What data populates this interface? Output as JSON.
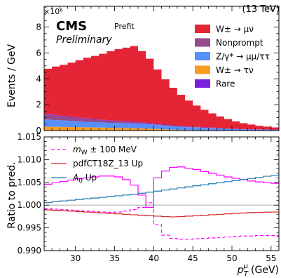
{
  "chart_data": [
    {
      "type": "area",
      "stacked": true,
      "energy": "(13 TeV)",
      "experiment": "CMS",
      "status": "Preliminary",
      "stage": "Prefit",
      "ylabel": "Events / GeV",
      "y_exponent": "×10⁶",
      "xlim": [
        26,
        56
      ],
      "ylim": [
        0,
        9.6
      ],
      "yticks": [
        {
          "v": 0,
          "label": "0"
        },
        {
          "v": 2,
          "label": "2"
        },
        {
          "v": 4,
          "label": "4"
        },
        {
          "v": 6,
          "label": "6"
        },
        {
          "v": 8,
          "label": "8"
        }
      ],
      "bin_edges": [
        26,
        27,
        28,
        29,
        30,
        31,
        32,
        33,
        34,
        35,
        36,
        37,
        38,
        39,
        40,
        41,
        42,
        43,
        44,
        45,
        46,
        47,
        48,
        49,
        50,
        51,
        52,
        53,
        54,
        55,
        56
      ],
      "series": [
        {
          "name": "W± → τν",
          "color": "#f89c20",
          "values": [
            0.3,
            0.29,
            0.28,
            0.27,
            0.26,
            0.25,
            0.24,
            0.23,
            0.22,
            0.21,
            0.2,
            0.19,
            0.17,
            0.15,
            0.12,
            0.09,
            0.07,
            0.05,
            0.04,
            0.03,
            0.02,
            0.02,
            0.015,
            0.01,
            0.01,
            0.01,
            0.005,
            0.005,
            0.005,
            0.005
          ]
        },
        {
          "name": "Z/γ* → μμ/ττ",
          "color": "#5790fc",
          "values": [
            0.55,
            0.52,
            0.5,
            0.47,
            0.45,
            0.43,
            0.41,
            0.4,
            0.38,
            0.37,
            0.36,
            0.35,
            0.34,
            0.33,
            0.3,
            0.28,
            0.26,
            0.24,
            0.22,
            0.2,
            0.18,
            0.16,
            0.14,
            0.12,
            0.1,
            0.08,
            0.07,
            0.06,
            0.05,
            0.04
          ]
        },
        {
          "name": "Nonprompt",
          "color": "#964a8b",
          "values": [
            0.38,
            0.34,
            0.3,
            0.26,
            0.23,
            0.2,
            0.17,
            0.15,
            0.13,
            0.11,
            0.1,
            0.09,
            0.08,
            0.07,
            0.06,
            0.05,
            0.04,
            0.035,
            0.03,
            0.025,
            0.02,
            0.02,
            0.015,
            0.015,
            0.01,
            0.01,
            0.01,
            0.01,
            0.01,
            0.01
          ]
        },
        {
          "name": "Rare",
          "color": "#7a21dd",
          "values": [
            0.05,
            0.05,
            0.05,
            0.05,
            0.05,
            0.05,
            0.05,
            0.05,
            0.05,
            0.05,
            0.05,
            0.05,
            0.05,
            0.05,
            0.04,
            0.04,
            0.04,
            0.04,
            0.03,
            0.03,
            0.03,
            0.03,
            0.02,
            0.02,
            0.02,
            0.02,
            0.02,
            0.02,
            0.02,
            0.02
          ]
        },
        {
          "name": "W± → μν",
          "color": "#e42536",
          "values": [
            3.5,
            3.75,
            3.95,
            4.2,
            4.45,
            4.7,
            4.9,
            5.1,
            5.35,
            5.55,
            5.7,
            5.85,
            5.5,
            4.95,
            4.2,
            3.5,
            2.9,
            2.4,
            2.0,
            1.65,
            1.35,
            1.1,
            0.9,
            0.72,
            0.57,
            0.45,
            0.36,
            0.28,
            0.22,
            0.17
          ]
        }
      ],
      "legend_order": [
        "W± → μν",
        "Nonprompt",
        "Z/γ* → μμ/ττ",
        "W± → τν",
        "Rare"
      ],
      "legend_labels": {
        "W± → μν": "W± → μν",
        "Nonprompt": "Nonprompt",
        "Z/γ* → μμ/ττ": "Z/γ* → μμ/ττ",
        "W± → τν": "W± → τν",
        "Rare": "Rare"
      },
      "legend_position": "top-right"
    },
    {
      "type": "line",
      "ylabel": "Ratio to pred.",
      "xlabel_main": "p",
      "xlabel_sup": "μ",
      "xlabel_sub": "T",
      "xlabel_unit": "(GeV)",
      "xlim": [
        26,
        56
      ],
      "ylim": [
        0.99,
        1.015
      ],
      "xticks": [
        {
          "v": 30,
          "label": "30"
        },
        {
          "v": 35,
          "label": "35"
        },
        {
          "v": 40,
          "label": "40"
        },
        {
          "v": 45,
          "label": "45"
        },
        {
          "v": 50,
          "label": "50"
        },
        {
          "v": 55,
          "label": "55"
        }
      ],
      "yticks": [
        {
          "v": 0.99,
          "label": "0.990"
        },
        {
          "v": 0.995,
          "label": "0.995"
        },
        {
          "v": 1.0,
          "label": "1.000"
        },
        {
          "v": 1.005,
          "label": "1.005"
        },
        {
          "v": 1.01,
          "label": "1.010"
        },
        {
          "v": 1.015,
          "label": "1.015"
        }
      ],
      "reference_line": 1.0,
      "bin_edges": [
        26,
        27,
        28,
        29,
        30,
        31,
        32,
        33,
        34,
        35,
        36,
        37,
        38,
        39,
        40,
        41,
        42,
        43,
        44,
        45,
        46,
        47,
        48,
        49,
        50,
        51,
        52,
        53,
        54,
        55,
        56
      ],
      "series": [
        {
          "name": "mW ± 100 MeV",
          "label_main": "m",
          "label_sub": "W",
          "label_rest": " ± 100 MeV",
          "color": "#ff00ff",
          "dash": false,
          "values": [
            1.0046,
            1.0049,
            1.0052,
            1.0055,
            1.0058,
            1.006,
            1.0062,
            1.0064,
            1.0064,
            1.0062,
            1.0056,
            1.0044,
            1.0022,
            0.9995,
            1.006,
            1.0075,
            1.0083,
            1.0084,
            1.0081,
            1.0078,
            1.0074,
            1.007,
            1.0066,
            1.0062,
            1.0059,
            1.0056,
            1.0053,
            1.0051,
            1.0049,
            1.0048
          ]
        },
        {
          "name": "mW down",
          "legend": false,
          "color": "#ff00ff",
          "dash": true,
          "values": [
            0.9992,
            0.9991,
            0.999,
            0.9989,
            0.9988,
            0.9987,
            0.9986,
            0.9985,
            0.9984,
            0.9985,
            0.9987,
            0.999,
            0.9995,
            1.0005,
            0.9957,
            0.9934,
            0.9927,
            0.9925,
            0.9925,
            0.9926,
            0.9927,
            0.9928,
            0.9929,
            0.993,
            0.9931,
            0.9932,
            0.9932,
            0.9933,
            0.9933,
            0.9933
          ]
        },
        {
          "name": "pdfCT18Z_13 Up",
          "color": "#d62728",
          "dash": false,
          "values": [
            0.99895,
            0.99885,
            0.99878,
            0.99868,
            0.99858,
            0.99848,
            0.99838,
            0.99828,
            0.99818,
            0.99808,
            0.99798,
            0.99788,
            0.99778,
            0.99768,
            0.99758,
            0.99748,
            0.99742,
            0.99748,
            0.99758,
            0.99768,
            0.99778,
            0.99788,
            0.99798,
            0.99808,
            0.99818,
            0.99828,
            0.99835,
            0.9984,
            0.99845,
            0.99848
          ]
        },
        {
          "name": "A0 Up",
          "label_main": "A",
          "label_sub": "0",
          "label_rest": " Up",
          "color": "#1f77b4",
          "dash": false,
          "values": [
            1.00055,
            1.00075,
            1.00092,
            1.00108,
            1.00125,
            1.0014,
            1.00155,
            1.00172,
            1.00188,
            1.00205,
            1.00222,
            1.0024,
            1.00262,
            1.00285,
            1.00308,
            1.00332,
            1.00355,
            1.00378,
            1.00402,
            1.00425,
            1.00448,
            1.0047,
            1.00492,
            1.00515,
            1.00538,
            1.00562,
            1.00585,
            1.0061,
            1.00635,
            1.0065
          ]
        }
      ],
      "legend_position": "top-left"
    }
  ]
}
